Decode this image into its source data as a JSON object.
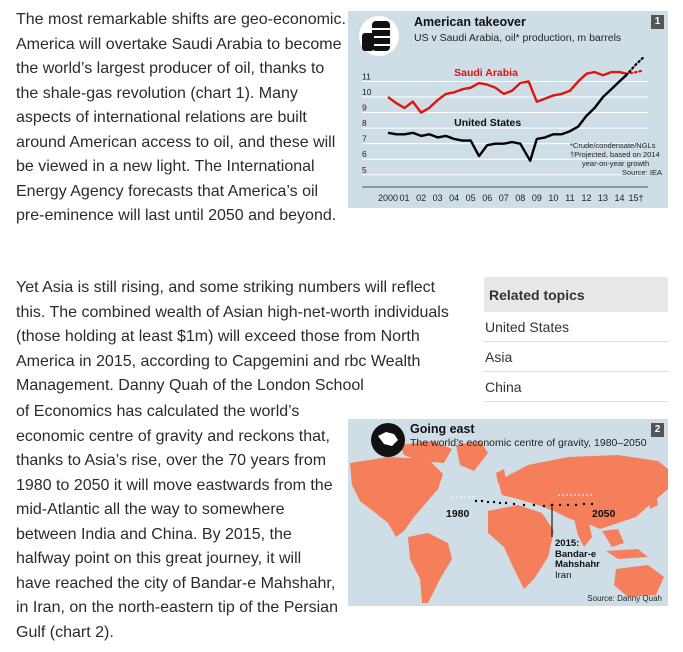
{
  "article": {
    "p1": "The most remarkable shifts are geo-economic. America will overtake Saudi Arabia to become the world’s largest producer of oil, thanks to the shale-gas revolution (chart 1). Many aspects of international relations are built around American access to oil, and these will be viewed in a new light. The International Energy Agency forecasts that America’s oil pre-eminence will last until 2050 and beyond.",
    "p2a": "Yet Asia is still rising, and some striking numbers will reflect this. The combined wealth of Asian high-net-worth individuals (those holding at least $1m) will exceed those from North America in 2015, according to Capgemini and rbc Wealth Management. Danny Quah of the London School",
    "p2b": "of Economics has calculated the world’s economic centre of gravity and reckons that, thanks to Asia’s rise, over the 70 years from 1980 to 2050 it will move eastwards from the mid-Atlantic all the way to somewhere between India and China. By 2015, the halfway point on this great journey, it will have reached the city of Bandar-e Mahshahr, in Iran, on the north-eastern tip of the Persian Gulf (chart 2)."
  },
  "related": {
    "heading": "Related topics",
    "items": [
      "United States",
      "Asia",
      "China"
    ]
  },
  "chart1": {
    "number": "1",
    "title": "American takeover",
    "subtitle": "US v Saudi Arabia, oil* production, m barrels",
    "icon": "oil-barrels-icon",
    "footnote1": "*Crude/condensate/NGLs",
    "footnote2a": "†Projected, based on 2014",
    "footnote2b": "year-on-year growth",
    "source": "Source: IEA",
    "colors": {
      "saudi": "#e3120b",
      "us": "#000000",
      "background": "#cfdde6"
    }
  },
  "chart_data": {
    "type": "line",
    "title": "American takeover",
    "subtitle": "US v Saudi Arabia, oil* production, m barrels",
    "x_tick_labels": [
      "2000",
      "01",
      "02",
      "03",
      "04",
      "05",
      "06",
      "07",
      "08",
      "09",
      "10",
      "11",
      "12",
      "13",
      "14",
      "15†"
    ],
    "y_tick_labels": [
      "5",
      "6",
      "7",
      "8",
      "9",
      "10",
      "11"
    ],
    "ylim": [
      4.6,
      11.8
    ],
    "xlim": [
      2000,
      2015.6
    ],
    "series": [
      {
        "name": "Saudi Arabia",
        "color": "#e3120b",
        "points": [
          [
            2000,
            10.0
          ],
          [
            2000.5,
            9.6
          ],
          [
            2001,
            9.3
          ],
          [
            2001.5,
            9.7
          ],
          [
            2002,
            9.0
          ],
          [
            2002.5,
            9.3
          ],
          [
            2003,
            9.8
          ],
          [
            2003.5,
            10.2
          ],
          [
            2004,
            10.3
          ],
          [
            2004.5,
            10.5
          ],
          [
            2005,
            10.6
          ],
          [
            2005.5,
            10.9
          ],
          [
            2006,
            10.8
          ],
          [
            2006.5,
            10.6
          ],
          [
            2007,
            10.2
          ],
          [
            2007.5,
            10.4
          ],
          [
            2008,
            10.9
          ],
          [
            2008.5,
            11.0
          ],
          [
            2009,
            9.7
          ],
          [
            2009.5,
            9.9
          ],
          [
            2010,
            10.1
          ],
          [
            2010.5,
            10.2
          ],
          [
            2011,
            10.4
          ],
          [
            2011.5,
            11.0
          ],
          [
            2012,
            11.5
          ],
          [
            2012.5,
            11.6
          ],
          [
            2013,
            11.4
          ],
          [
            2013.5,
            11.6
          ],
          [
            2014,
            11.6
          ],
          [
            2014.4,
            11.5
          ]
        ],
        "projected": [
          [
            2014.4,
            11.5
          ],
          [
            2015,
            11.6
          ],
          [
            2015.4,
            11.7
          ]
        ]
      },
      {
        "name": "United States",
        "color": "#000000",
        "points": [
          [
            2000,
            7.7
          ],
          [
            2000.5,
            7.6
          ],
          [
            2001,
            7.6
          ],
          [
            2001.5,
            7.7
          ],
          [
            2002,
            7.5
          ],
          [
            2002.5,
            7.6
          ],
          [
            2003,
            7.4
          ],
          [
            2003.5,
            7.5
          ],
          [
            2004,
            7.3
          ],
          [
            2004.5,
            7.2
          ],
          [
            2005,
            7.2
          ],
          [
            2005.5,
            6.2
          ],
          [
            2006,
            6.9
          ],
          [
            2006.5,
            7.0
          ],
          [
            2007,
            7.0
          ],
          [
            2007.5,
            7.1
          ],
          [
            2008,
            7.0
          ],
          [
            2008.6,
            5.9
          ],
          [
            2009,
            7.3
          ],
          [
            2009.5,
            7.4
          ],
          [
            2010,
            7.6
          ],
          [
            2010.5,
            7.6
          ],
          [
            2011,
            7.8
          ],
          [
            2011.5,
            8.1
          ],
          [
            2012,
            8.8
          ],
          [
            2012.5,
            9.3
          ],
          [
            2013,
            10.0
          ],
          [
            2013.5,
            10.5
          ],
          [
            2014,
            11.0
          ],
          [
            2014.4,
            11.4
          ]
        ],
        "projected": [
          [
            2014.4,
            11.4
          ],
          [
            2015,
            12.1
          ],
          [
            2015.4,
            12.5
          ]
        ]
      }
    ]
  },
  "chart2": {
    "number": "2",
    "title": "Going east",
    "subtitle": "The world’s economic centre of gravity, 1980–2050",
    "icon": "globe-icon",
    "label_start": "1980",
    "label_end": "2050",
    "label_mid_year": "2015:",
    "label_mid_city1": "Bandar-e",
    "label_mid_city2": "Mahshahr",
    "label_mid_country": "Iran",
    "source": "Source: Danny Quah",
    "colors": {
      "land": "#f47f5a",
      "sea": "#cfdde6",
      "path": "#000000"
    }
  }
}
